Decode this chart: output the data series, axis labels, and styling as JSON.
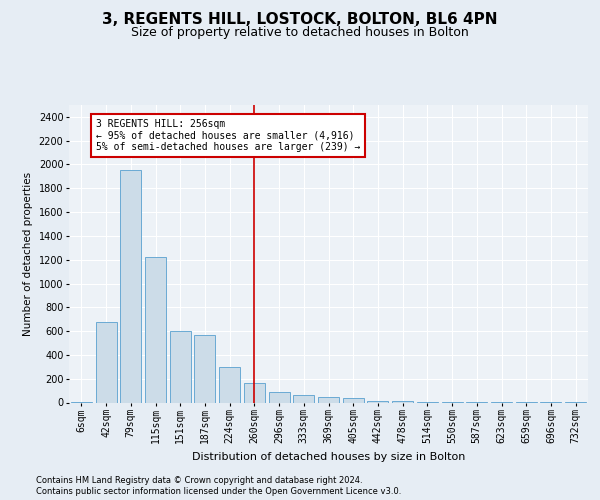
{
  "title1": "3, REGENTS HILL, LOSTOCK, BOLTON, BL6 4PN",
  "title2": "Size of property relative to detached houses in Bolton",
  "xlabel": "Distribution of detached houses by size in Bolton",
  "ylabel": "Number of detached properties",
  "categories": [
    "6sqm",
    "42sqm",
    "79sqm",
    "115sqm",
    "151sqm",
    "187sqm",
    "224sqm",
    "260sqm",
    "296sqm",
    "333sqm",
    "369sqm",
    "405sqm",
    "442sqm",
    "478sqm",
    "514sqm",
    "550sqm",
    "587sqm",
    "623sqm",
    "659sqm",
    "696sqm",
    "732sqm"
  ],
  "values": [
    5,
    680,
    1950,
    1220,
    600,
    570,
    300,
    165,
    90,
    60,
    50,
    40,
    15,
    10,
    5,
    5,
    3,
    2,
    1,
    1,
    1
  ],
  "bar_color": "#ccdce8",
  "bar_edge_color": "#6aaad4",
  "ylim": [
    0,
    2500
  ],
  "yticks": [
    0,
    200,
    400,
    600,
    800,
    1000,
    1200,
    1400,
    1600,
    1800,
    2000,
    2200,
    2400
  ],
  "vline_x_index": 7,
  "vline_color": "#cc0000",
  "annotation_text": "3 REGENTS HILL: 256sqm\n← 95% of detached houses are smaller (4,916)\n5% of semi-detached houses are larger (239) →",
  "annotation_box_color": "#cc0000",
  "footer1": "Contains HM Land Registry data © Crown copyright and database right 2024.",
  "footer2": "Contains public sector information licensed under the Open Government Licence v3.0.",
  "bg_color": "#e6edf4",
  "plot_bg_color": "#edf2f7",
  "title1_fontsize": 11,
  "title2_fontsize": 9,
  "xlabel_fontsize": 8,
  "ylabel_fontsize": 7.5,
  "tick_fontsize": 7,
  "ann_fontsize": 7,
  "footer_fontsize": 6
}
